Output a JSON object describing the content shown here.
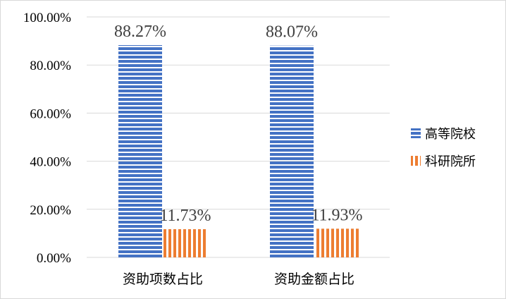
{
  "colors": {
    "series_1": "#4472c4",
    "series_2": "#ed7d31",
    "grid": "#d9d9d9"
  },
  "chart_data": {
    "type": "bar",
    "categories": [
      "资助项数占比",
      "资助金额占比"
    ],
    "series": [
      {
        "name": "高等院校",
        "values": [
          88.27,
          88.07
        ],
        "labels": [
          "88.27%",
          "88.07%"
        ],
        "pattern": "horizontal-stripes"
      },
      {
        "name": "科研院所",
        "values": [
          11.73,
          11.93
        ],
        "labels": [
          "11.73%",
          "11.93%"
        ],
        "pattern": "vertical-stripes"
      }
    ],
    "ylim": [
      0,
      100
    ],
    "yticks": [
      0,
      20,
      40,
      60,
      80,
      100
    ],
    "ytick_labels": [
      "0.00%",
      "20.00%",
      "40.00%",
      "60.00%",
      "80.00%",
      "100.00%"
    ],
    "grid": true,
    "legend": {
      "position": "right",
      "entries": [
        "高等院校",
        "科研院所"
      ]
    },
    "title": "",
    "xlabel": "",
    "ylabel": ""
  }
}
